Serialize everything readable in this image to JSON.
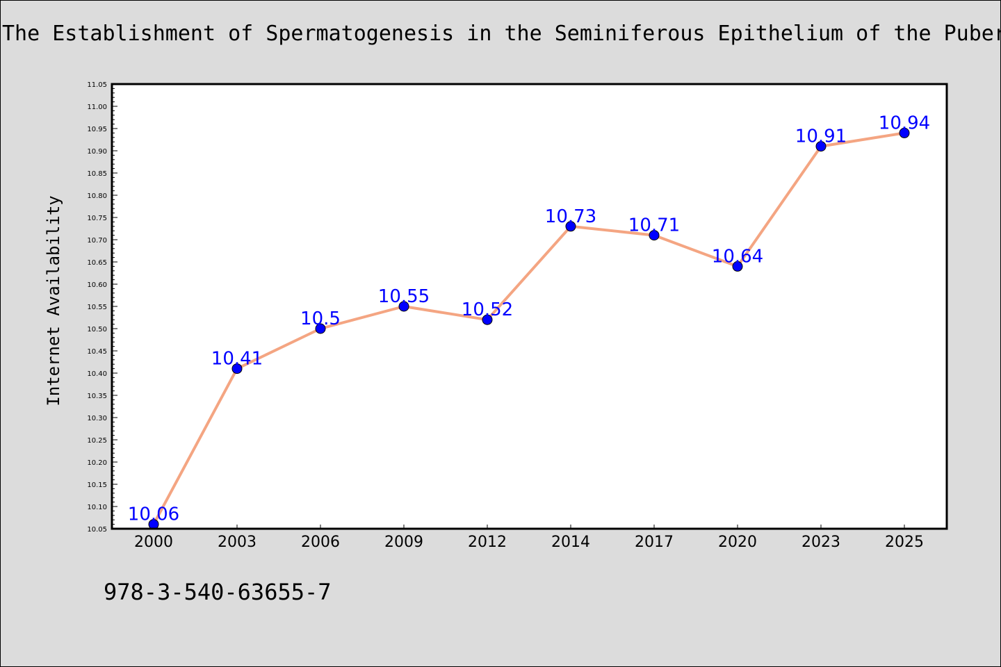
{
  "chart_data": {
    "type": "line",
    "title": "The Establishment of Spermatogenesis in the Seminiferous Epithelium of the Puber",
    "xlabel": "",
    "ylabel": "Internet Availability",
    "categories": [
      "2000",
      "2003",
      "2006",
      "2009",
      "2012",
      "2014",
      "2017",
      "2020",
      "2023",
      "2025"
    ],
    "series": [
      {
        "values": [
          10.06,
          10.41,
          10.5,
          10.55,
          10.52,
          10.73,
          10.71,
          10.64,
          10.91,
          10.94
        ],
        "labels": [
          "10.06",
          "10.41",
          "10.5",
          "10.55",
          "10.52",
          "10.73",
          "10.71",
          "10.64",
          "10.91",
          "10.94"
        ],
        "line_color": "#f4a582",
        "marker_color": "#0000ff"
      }
    ],
    "ylim": [
      10.05,
      11.05
    ],
    "yticks": [
      "10.05",
      "10.10",
      "10.15",
      "10.20",
      "10.25",
      "10.30",
      "10.35",
      "10.40",
      "10.45",
      "10.50",
      "10.55",
      "10.60",
      "10.65",
      "10.70",
      "10.75",
      "10.80",
      "10.85",
      "10.90",
      "10.95",
      "11.00",
      "11.05"
    ],
    "grid": false,
    "legend": "none"
  },
  "footnote": "978-3-540-63655-7",
  "colors": {
    "background": "#dcdcdc",
    "plot_background": "#ffffff",
    "label": "#0000ff"
  }
}
